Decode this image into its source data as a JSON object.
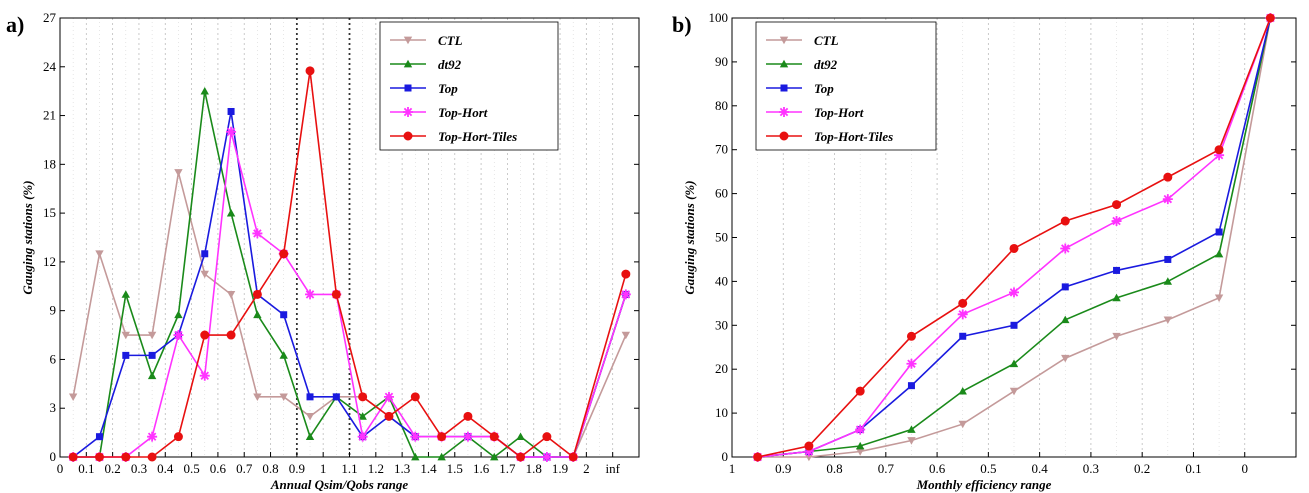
{
  "chart_data": [
    {
      "panel_label": "a)",
      "type": "line",
      "xlabel": "Annual Qsim/Qobs range",
      "ylabel": "Gauging stations (%)",
      "xlim": [
        0,
        2.2
      ],
      "ylim": [
        0,
        27
      ],
      "x_ticks": [
        {
          "value": 0,
          "label": "0"
        },
        {
          "value": 0.1,
          "label": "0.1"
        },
        {
          "value": 0.2,
          "label": "0.2"
        },
        {
          "value": 0.3,
          "label": "0.3"
        },
        {
          "value": 0.4,
          "label": "0.4"
        },
        {
          "value": 0.5,
          "label": "0.5"
        },
        {
          "value": 0.6,
          "label": "0.6"
        },
        {
          "value": 0.7,
          "label": "0.7"
        },
        {
          "value": 0.8,
          "label": "0.8"
        },
        {
          "value": 0.9,
          "label": "0.9"
        },
        {
          "value": 1.0,
          "label": "1"
        },
        {
          "value": 1.1,
          "label": "1.1"
        },
        {
          "value": 1.2,
          "label": "1.2"
        },
        {
          "value": 1.3,
          "label": "1.3"
        },
        {
          "value": 1.4,
          "label": "1.4"
        },
        {
          "value": 1.5,
          "label": "1.5"
        },
        {
          "value": 1.6,
          "label": "1.6"
        },
        {
          "value": 1.7,
          "label": "1.7"
        },
        {
          "value": 1.8,
          "label": "1.8"
        },
        {
          "value": 1.9,
          "label": "1.9"
        },
        {
          "value": 2.0,
          "label": "2"
        },
        {
          "value": 2.1,
          "label": "inf"
        }
      ],
      "y_ticks": [
        0,
        3,
        6,
        9,
        12,
        15,
        18,
        21,
        24,
        27
      ],
      "dotted_reference_lines_x": [
        0.9,
        1.1
      ],
      "grid": "vertical dashed",
      "legend_position": "top-center",
      "x": [
        0.05,
        0.15,
        0.25,
        0.35,
        0.45,
        0.55,
        0.65,
        0.75,
        0.85,
        0.95,
        1.05,
        1.15,
        1.25,
        1.35,
        1.45,
        1.55,
        1.65,
        1.75,
        1.85,
        1.95,
        2.15
      ],
      "series": [
        {
          "name": "CTL",
          "color": "#c49a9a",
          "marker": "triangle-down",
          "values": [
            3.7,
            12.5,
            7.5,
            7.5,
            17.5,
            11.25,
            10,
            3.7,
            3.7,
            2.5,
            3.7,
            3.7,
            2.5,
            1.25,
            1.25,
            1.25,
            1.25,
            0,
            0,
            0,
            7.5
          ]
        },
        {
          "name": "dt92",
          "color": "#1a8a1a",
          "marker": "triangle-up",
          "values": [
            0,
            0,
            10,
            5,
            8.75,
            22.5,
            15,
            8.75,
            6.25,
            1.25,
            3.7,
            2.5,
            3.7,
            0,
            0,
            1.25,
            0,
            1.25,
            0,
            0,
            10
          ]
        },
        {
          "name": "Top",
          "color": "#1a1adf",
          "marker": "square",
          "values": [
            0,
            1.25,
            6.25,
            6.25,
            7.5,
            12.5,
            21.25,
            10,
            8.75,
            3.7,
            3.7,
            1.25,
            2.5,
            1.25,
            1.25,
            1.25,
            1.25,
            0,
            0,
            0,
            10
          ]
        },
        {
          "name": "Top-Hort",
          "color": "#ff33ff",
          "marker": "asterisk",
          "values": [
            0,
            0,
            0,
            1.25,
            7.5,
            5,
            20,
            13.75,
            12.5,
            10,
            10,
            1.25,
            3.7,
            1.25,
            1.25,
            1.25,
            1.25,
            0,
            0,
            0,
            10
          ]
        },
        {
          "name": "Top-Hort-Tiles",
          "color": "#e81010",
          "marker": "circle",
          "values": [
            0,
            0,
            0,
            0,
            1.25,
            7.5,
            7.5,
            10,
            12.5,
            23.75,
            10,
            3.7,
            2.5,
            3.7,
            1.25,
            2.5,
            1.25,
            0,
            1.25,
            0,
            11.25
          ]
        }
      ]
    },
    {
      "panel_label": "b)",
      "type": "line",
      "xlabel": "Monthly efficiency range",
      "ylabel": "Gauging stations (%)",
      "xlim": [
        1,
        -0.1
      ],
      "ylim": [
        0,
        100
      ],
      "x_ticks": [
        {
          "value": 1,
          "label": "1"
        },
        {
          "value": 0.9,
          "label": "0.9"
        },
        {
          "value": 0.8,
          "label": "0.8"
        },
        {
          "value": 0.7,
          "label": "0.7"
        },
        {
          "value": 0.6,
          "label": "0.6"
        },
        {
          "value": 0.5,
          "label": "0.5"
        },
        {
          "value": 0.4,
          "label": "0.4"
        },
        {
          "value": 0.3,
          "label": "0.3"
        },
        {
          "value": 0.2,
          "label": "0.2"
        },
        {
          "value": 0.1,
          "label": "0.1"
        },
        {
          "value": 0,
          "label": "0"
        }
      ],
      "y_ticks": [
        0,
        10,
        20,
        30,
        40,
        50,
        60,
        70,
        80,
        90,
        100
      ],
      "grid": "vertical dashed",
      "legend_position": "top-left",
      "x": [
        0.95,
        0.85,
        0.75,
        0.65,
        0.55,
        0.45,
        0.35,
        0.25,
        0.15,
        0.05,
        -0.05
      ],
      "series": [
        {
          "name": "CTL",
          "color": "#c49a9a",
          "marker": "triangle-down",
          "values": [
            0,
            0,
            1.25,
            3.75,
            7.5,
            15,
            22.5,
            27.5,
            31.25,
            36.25,
            100
          ]
        },
        {
          "name": "dt92",
          "color": "#1a8a1a",
          "marker": "triangle-up",
          "values": [
            0,
            1.25,
            2.5,
            6.25,
            15,
            21.25,
            31.25,
            36.25,
            40,
            46.25,
            100
          ]
        },
        {
          "name": "Top",
          "color": "#1a1adf",
          "marker": "square",
          "values": [
            0,
            1.25,
            6.25,
            16.25,
            27.5,
            30,
            38.75,
            42.5,
            45,
            51.25,
            100
          ]
        },
        {
          "name": "Top-Hort",
          "color": "#ff33ff",
          "marker": "asterisk",
          "values": [
            0,
            1.25,
            6.25,
            21.25,
            32.5,
            37.5,
            47.5,
            53.75,
            58.75,
            68.75,
            100
          ]
        },
        {
          "name": "Top-Hort-Tiles",
          "color": "#e81010",
          "marker": "circle",
          "values": [
            0,
            2.5,
            15,
            27.5,
            35,
            47.5,
            53.75,
            57.5,
            63.75,
            70,
            100
          ]
        }
      ]
    }
  ]
}
